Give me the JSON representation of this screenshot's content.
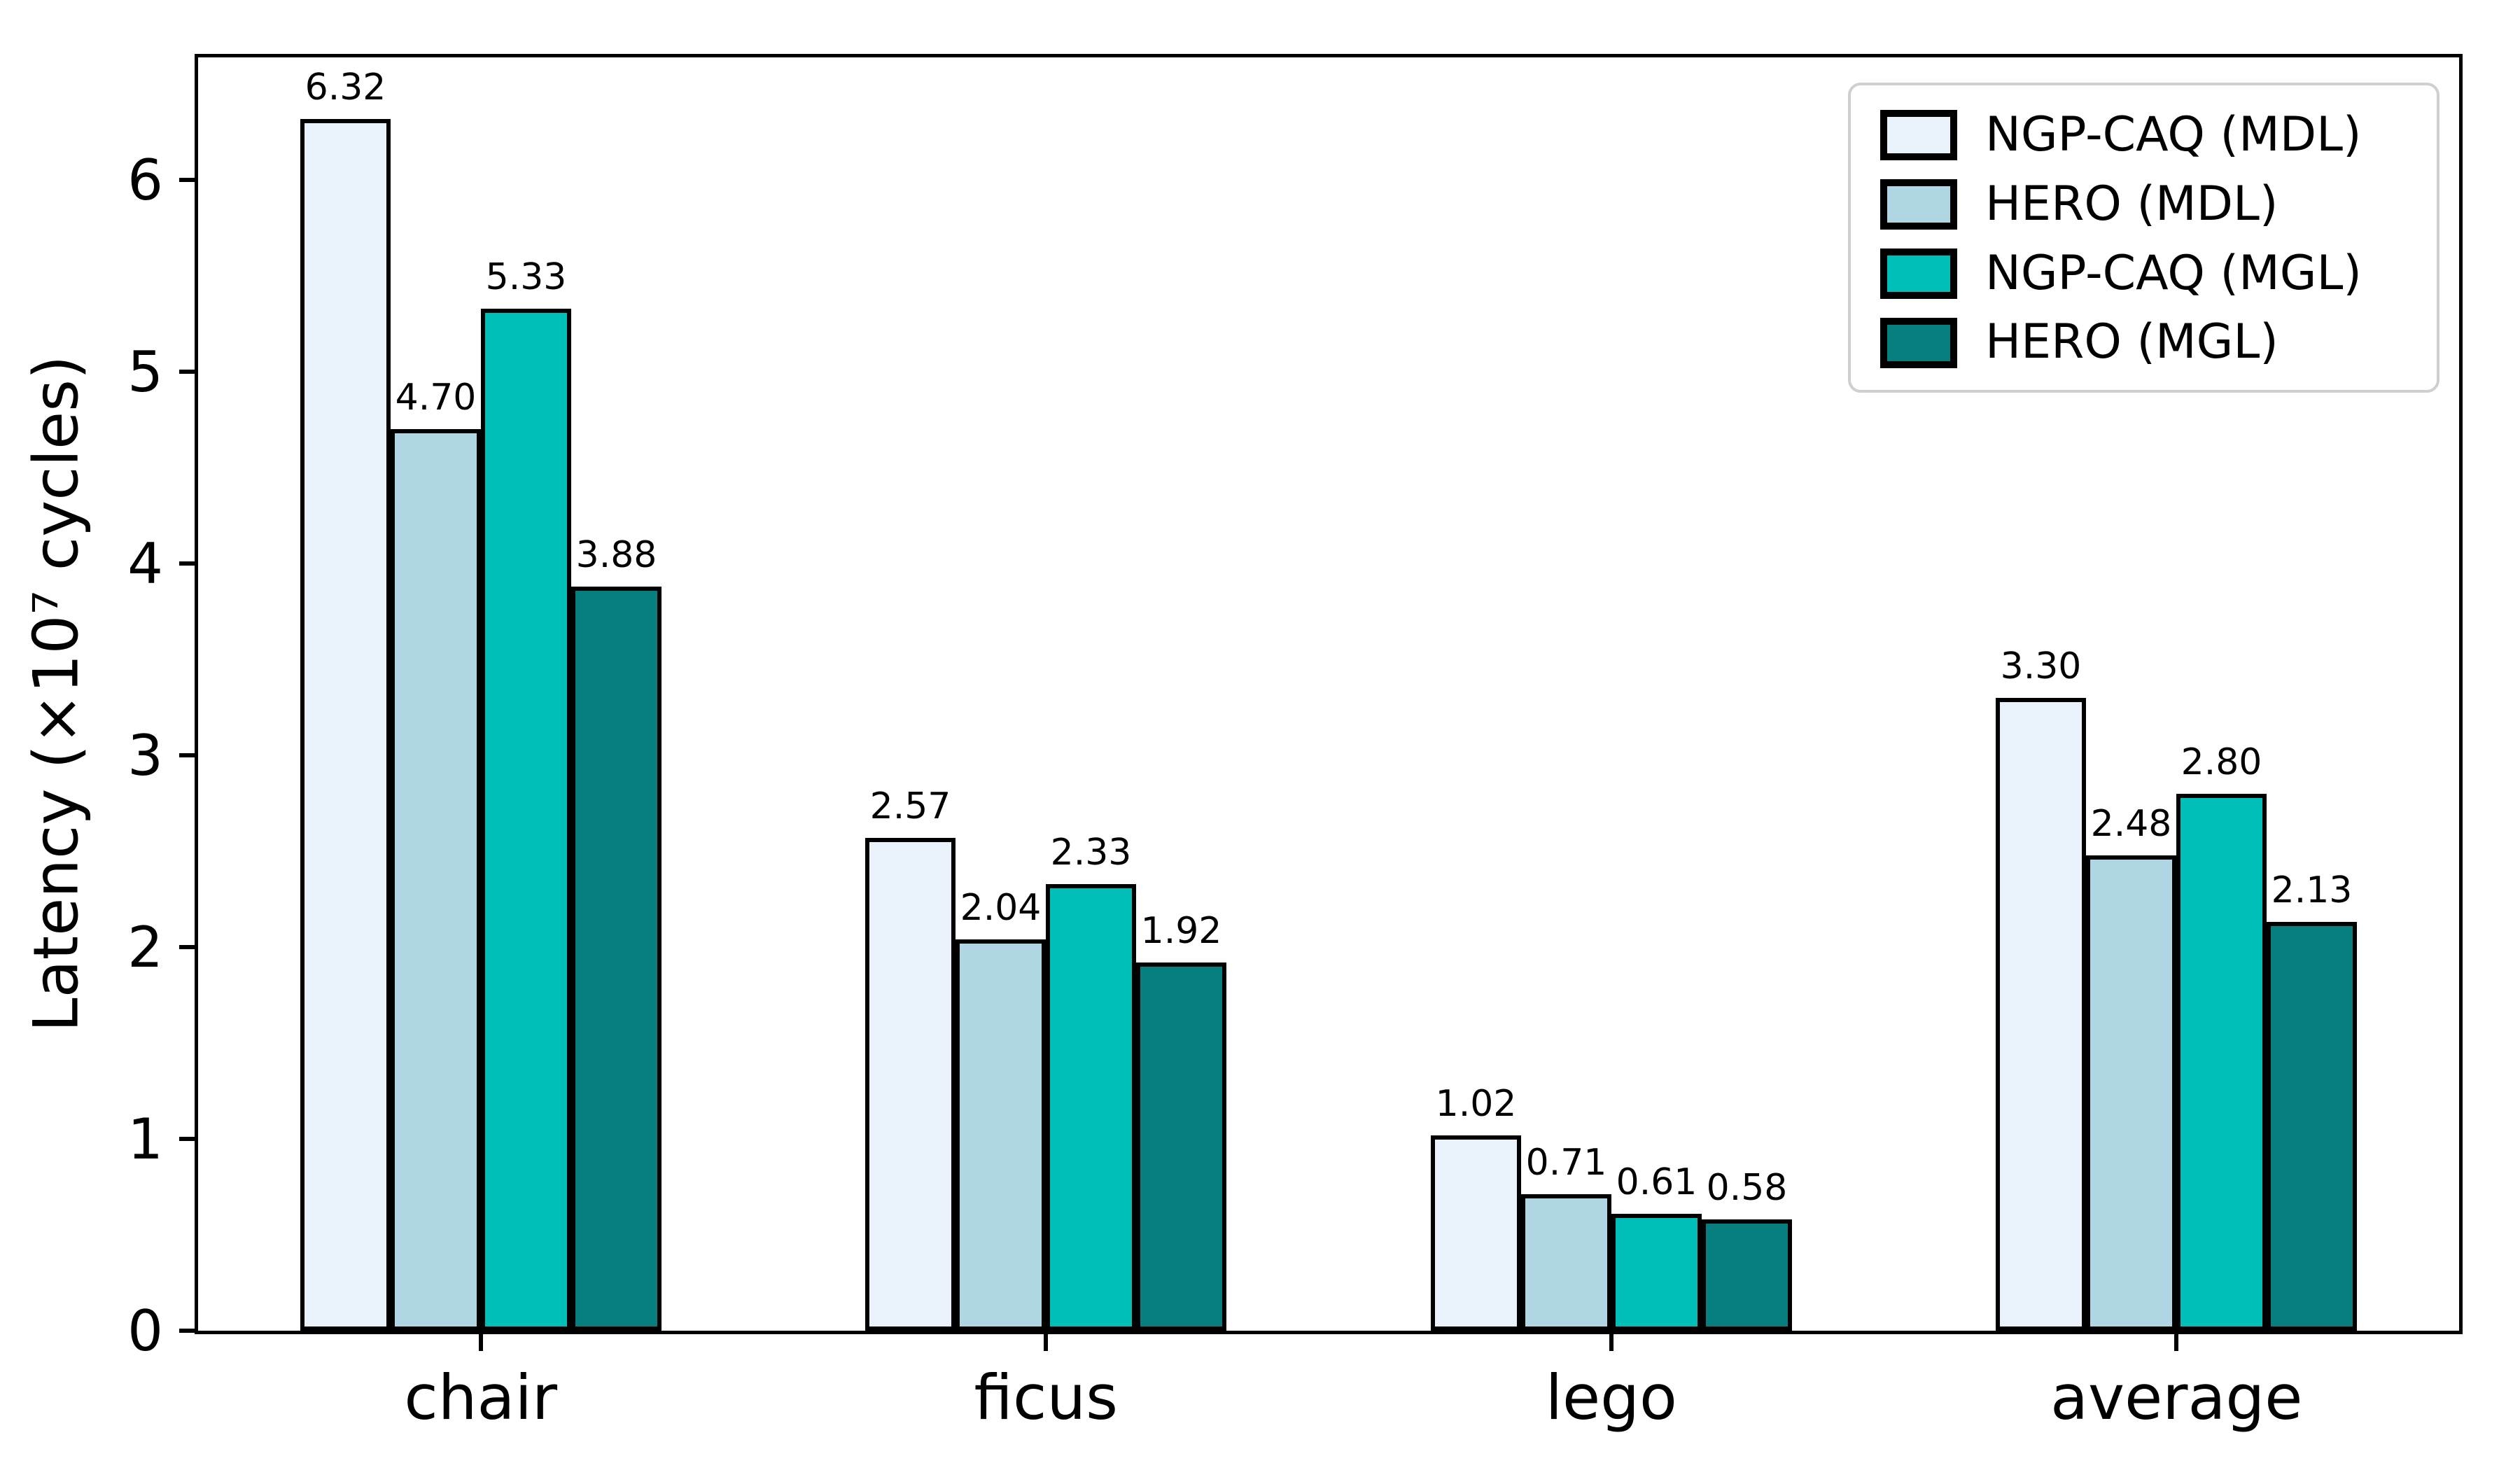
{
  "chart_data": {
    "type": "bar",
    "title": "",
    "categories": [
      "chair",
      "ficus",
      "lego",
      "average"
    ],
    "series": [
      {
        "name": "NGP-CAQ (MDL)",
        "color": "#e9f2fa",
        "values": [
          6.32,
          2.57,
          1.02,
          3.3
        ]
      },
      {
        "name": "HERO (MDL)",
        "color": "#b0d5e3",
        "values": [
          4.7,
          2.04,
          0.71,
          2.48
        ]
      },
      {
        "name": "NGP-CAQ (MGL)",
        "color": "#00bfb8",
        "values": [
          5.33,
          2.33,
          0.61,
          2.8
        ]
      },
      {
        "name": "HERO (MGL)",
        "color": "#077f7e",
        "values": [
          3.88,
          1.92,
          0.58,
          2.13
        ]
      }
    ],
    "xlabel": "",
    "ylabel": "Latency (×10⁷ cycles)",
    "yticks": [
      0,
      1,
      2,
      3,
      4,
      5,
      6
    ],
    "ylim": [
      0,
      6.64
    ],
    "bar_edge_color": "#000000",
    "value_label_decimals": 2,
    "legend_position": "upper right",
    "legend_border_color": "#cfcfcf",
    "grid": false
  }
}
